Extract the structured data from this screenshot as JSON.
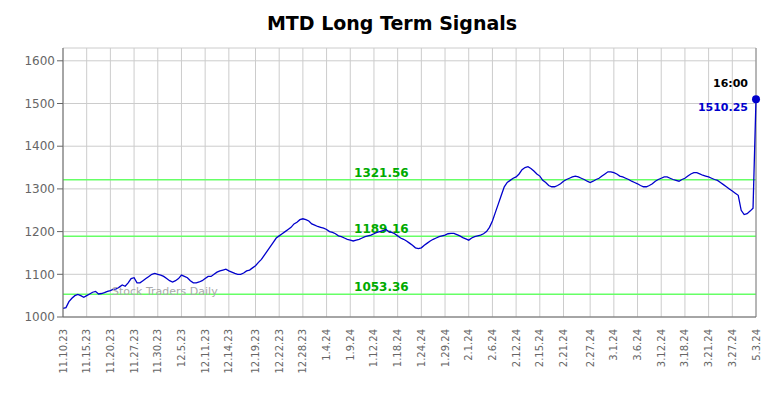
{
  "chart_data": {
    "type": "line",
    "title": "MTD Long Term Signals",
    "color": "#0000cc",
    "grid": true,
    "ylim": [
      1000,
      1630
    ],
    "yticks": [
      1000,
      1100,
      1200,
      1300,
      1400,
      1500,
      1600
    ],
    "watermark": "Stock Traders Daily",
    "reference_lines": [
      {
        "y": 1053.36,
        "label": "1053.36",
        "color": "#66ff66"
      },
      {
        "y": 1189.16,
        "label": "1189.16",
        "color": "#66ff66"
      },
      {
        "y": 1321.56,
        "label": "1321.56",
        "color": "#66ff66"
      }
    ],
    "annotations": [
      {
        "text": "16:00",
        "color": "#000000"
      },
      {
        "text": "1510.25",
        "color": "#0000cc"
      }
    ],
    "categories": [
      "11.10.23",
      null,
      null,
      null,
      null,
      null,
      null,
      null,
      "11.15.23",
      null,
      null,
      null,
      null,
      null,
      null,
      null,
      "11.20.23",
      null,
      null,
      null,
      null,
      null,
      null,
      null,
      "11.27.23",
      null,
      null,
      null,
      null,
      null,
      null,
      null,
      "11.30.23",
      null,
      null,
      null,
      null,
      null,
      null,
      null,
      "12.5.23",
      null,
      null,
      null,
      null,
      null,
      null,
      null,
      "12.11.23",
      null,
      null,
      null,
      null,
      null,
      null,
      null,
      "12.14.23",
      null,
      null,
      null,
      null,
      null,
      null,
      null,
      null,
      "12.19.23",
      null,
      null,
      null,
      null,
      null,
      null,
      null,
      "12.22.23",
      null,
      null,
      null,
      null,
      null,
      null,
      null,
      "12.28.23",
      null,
      null,
      null,
      null,
      null,
      null,
      null,
      "1.4.24",
      null,
      null,
      null,
      null,
      null,
      null,
      null,
      "1.9.24",
      null,
      null,
      null,
      null,
      null,
      null,
      null,
      "1.12.24",
      null,
      null,
      null,
      null,
      null,
      null,
      null,
      "1.18.24",
      null,
      null,
      null,
      null,
      null,
      null,
      null,
      "1.24.24",
      null,
      null,
      null,
      null,
      null,
      null,
      null,
      "1.29.24",
      null,
      null,
      null,
      null,
      null,
      null,
      null,
      "2.1.24",
      null,
      null,
      null,
      null,
      null,
      null,
      null,
      "2.6.24",
      null,
      null,
      null,
      null,
      null,
      null,
      null,
      "2.12.24",
      null,
      null,
      null,
      null,
      null,
      null,
      null,
      "2.15.24",
      null,
      null,
      null,
      null,
      null,
      null,
      null,
      "2.21.24",
      null,
      null,
      null,
      null,
      null,
      null,
      null,
      null,
      "2.27.24",
      null,
      null,
      null,
      null,
      null,
      null,
      null,
      "3.1.24",
      null,
      null,
      null,
      null,
      null,
      null,
      null,
      "3.6.24",
      null,
      null,
      null,
      null,
      null,
      null,
      null,
      "3.12.24",
      null,
      null,
      null,
      null,
      null,
      null,
      null,
      "3.18.24",
      null,
      null,
      null,
      null,
      null,
      null,
      null,
      "3.21.24",
      null,
      null,
      null,
      null,
      null,
      null,
      null,
      "3.27.24",
      null,
      null,
      null,
      null,
      null,
      null,
      null,
      "5.3.24"
    ],
    "values": [
      1020,
      1022,
      1036,
      1044,
      1050,
      1053,
      1050,
      1046,
      1050,
      1054,
      1058,
      1060,
      1054,
      1055,
      1057,
      1060,
      1062,
      1065,
      1066,
      1070,
      1075,
      1072,
      1080,
      1090,
      1092,
      1080,
      1080,
      1085,
      1090,
      1095,
      1100,
      1102,
      1100,
      1098,
      1095,
      1090,
      1085,
      1082,
      1085,
      1090,
      1098,
      1095,
      1092,
      1085,
      1080,
      1080,
      1082,
      1085,
      1090,
      1095,
      1095,
      1100,
      1105,
      1108,
      1110,
      1112,
      1108,
      1105,
      1102,
      1100,
      1100,
      1103,
      1108,
      1110,
      1115,
      1120,
      1128,
      1135,
      1145,
      1155,
      1165,
      1175,
      1185,
      1190,
      1195,
      1200,
      1205,
      1210,
      1218,
      1222,
      1228,
      1230,
      1228,
      1225,
      1218,
      1215,
      1212,
      1210,
      1208,
      1205,
      1200,
      1198,
      1195,
      1190,
      1188,
      1185,
      1182,
      1180,
      1178,
      1180,
      1182,
      1185,
      1188,
      1190,
      1192,
      1195,
      1198,
      1200,
      1202,
      1205,
      1200,
      1198,
      1195,
      1190,
      1185,
      1182,
      1178,
      1173,
      1168,
      1162,
      1160,
      1162,
      1168,
      1173,
      1178,
      1182,
      1185,
      1188,
      1190,
      1192,
      1195,
      1196,
      1196,
      1193,
      1190,
      1186,
      1183,
      1180,
      1185,
      1188,
      1190,
      1192,
      1195,
      1200,
      1210,
      1225,
      1245,
      1265,
      1285,
      1305,
      1315,
      1320,
      1325,
      1328,
      1335,
      1345,
      1350,
      1352,
      1348,
      1342,
      1335,
      1330,
      1320,
      1315,
      1308,
      1305,
      1305,
      1308,
      1312,
      1318,
      1322,
      1325,
      1328,
      1330,
      1328,
      1325,
      1322,
      1318,
      1315,
      1318,
      1322,
      1325,
      1330,
      1335,
      1340,
      1340,
      1338,
      1335,
      1330,
      1328,
      1325,
      1322,
      1318,
      1315,
      1312,
      1308,
      1305,
      1305,
      1308,
      1312,
      1318,
      1322,
      1325,
      1328,
      1328,
      1325,
      1322,
      1320,
      1318,
      1322,
      1325,
      1330,
      1335,
      1338,
      1338,
      1335,
      1332,
      1330,
      1328,
      1325,
      1322,
      1320,
      1315,
      1310,
      1305,
      1300,
      1295,
      1290,
      1285,
      1250,
      1240,
      1242,
      1248,
      1255,
      1510
    ]
  }
}
